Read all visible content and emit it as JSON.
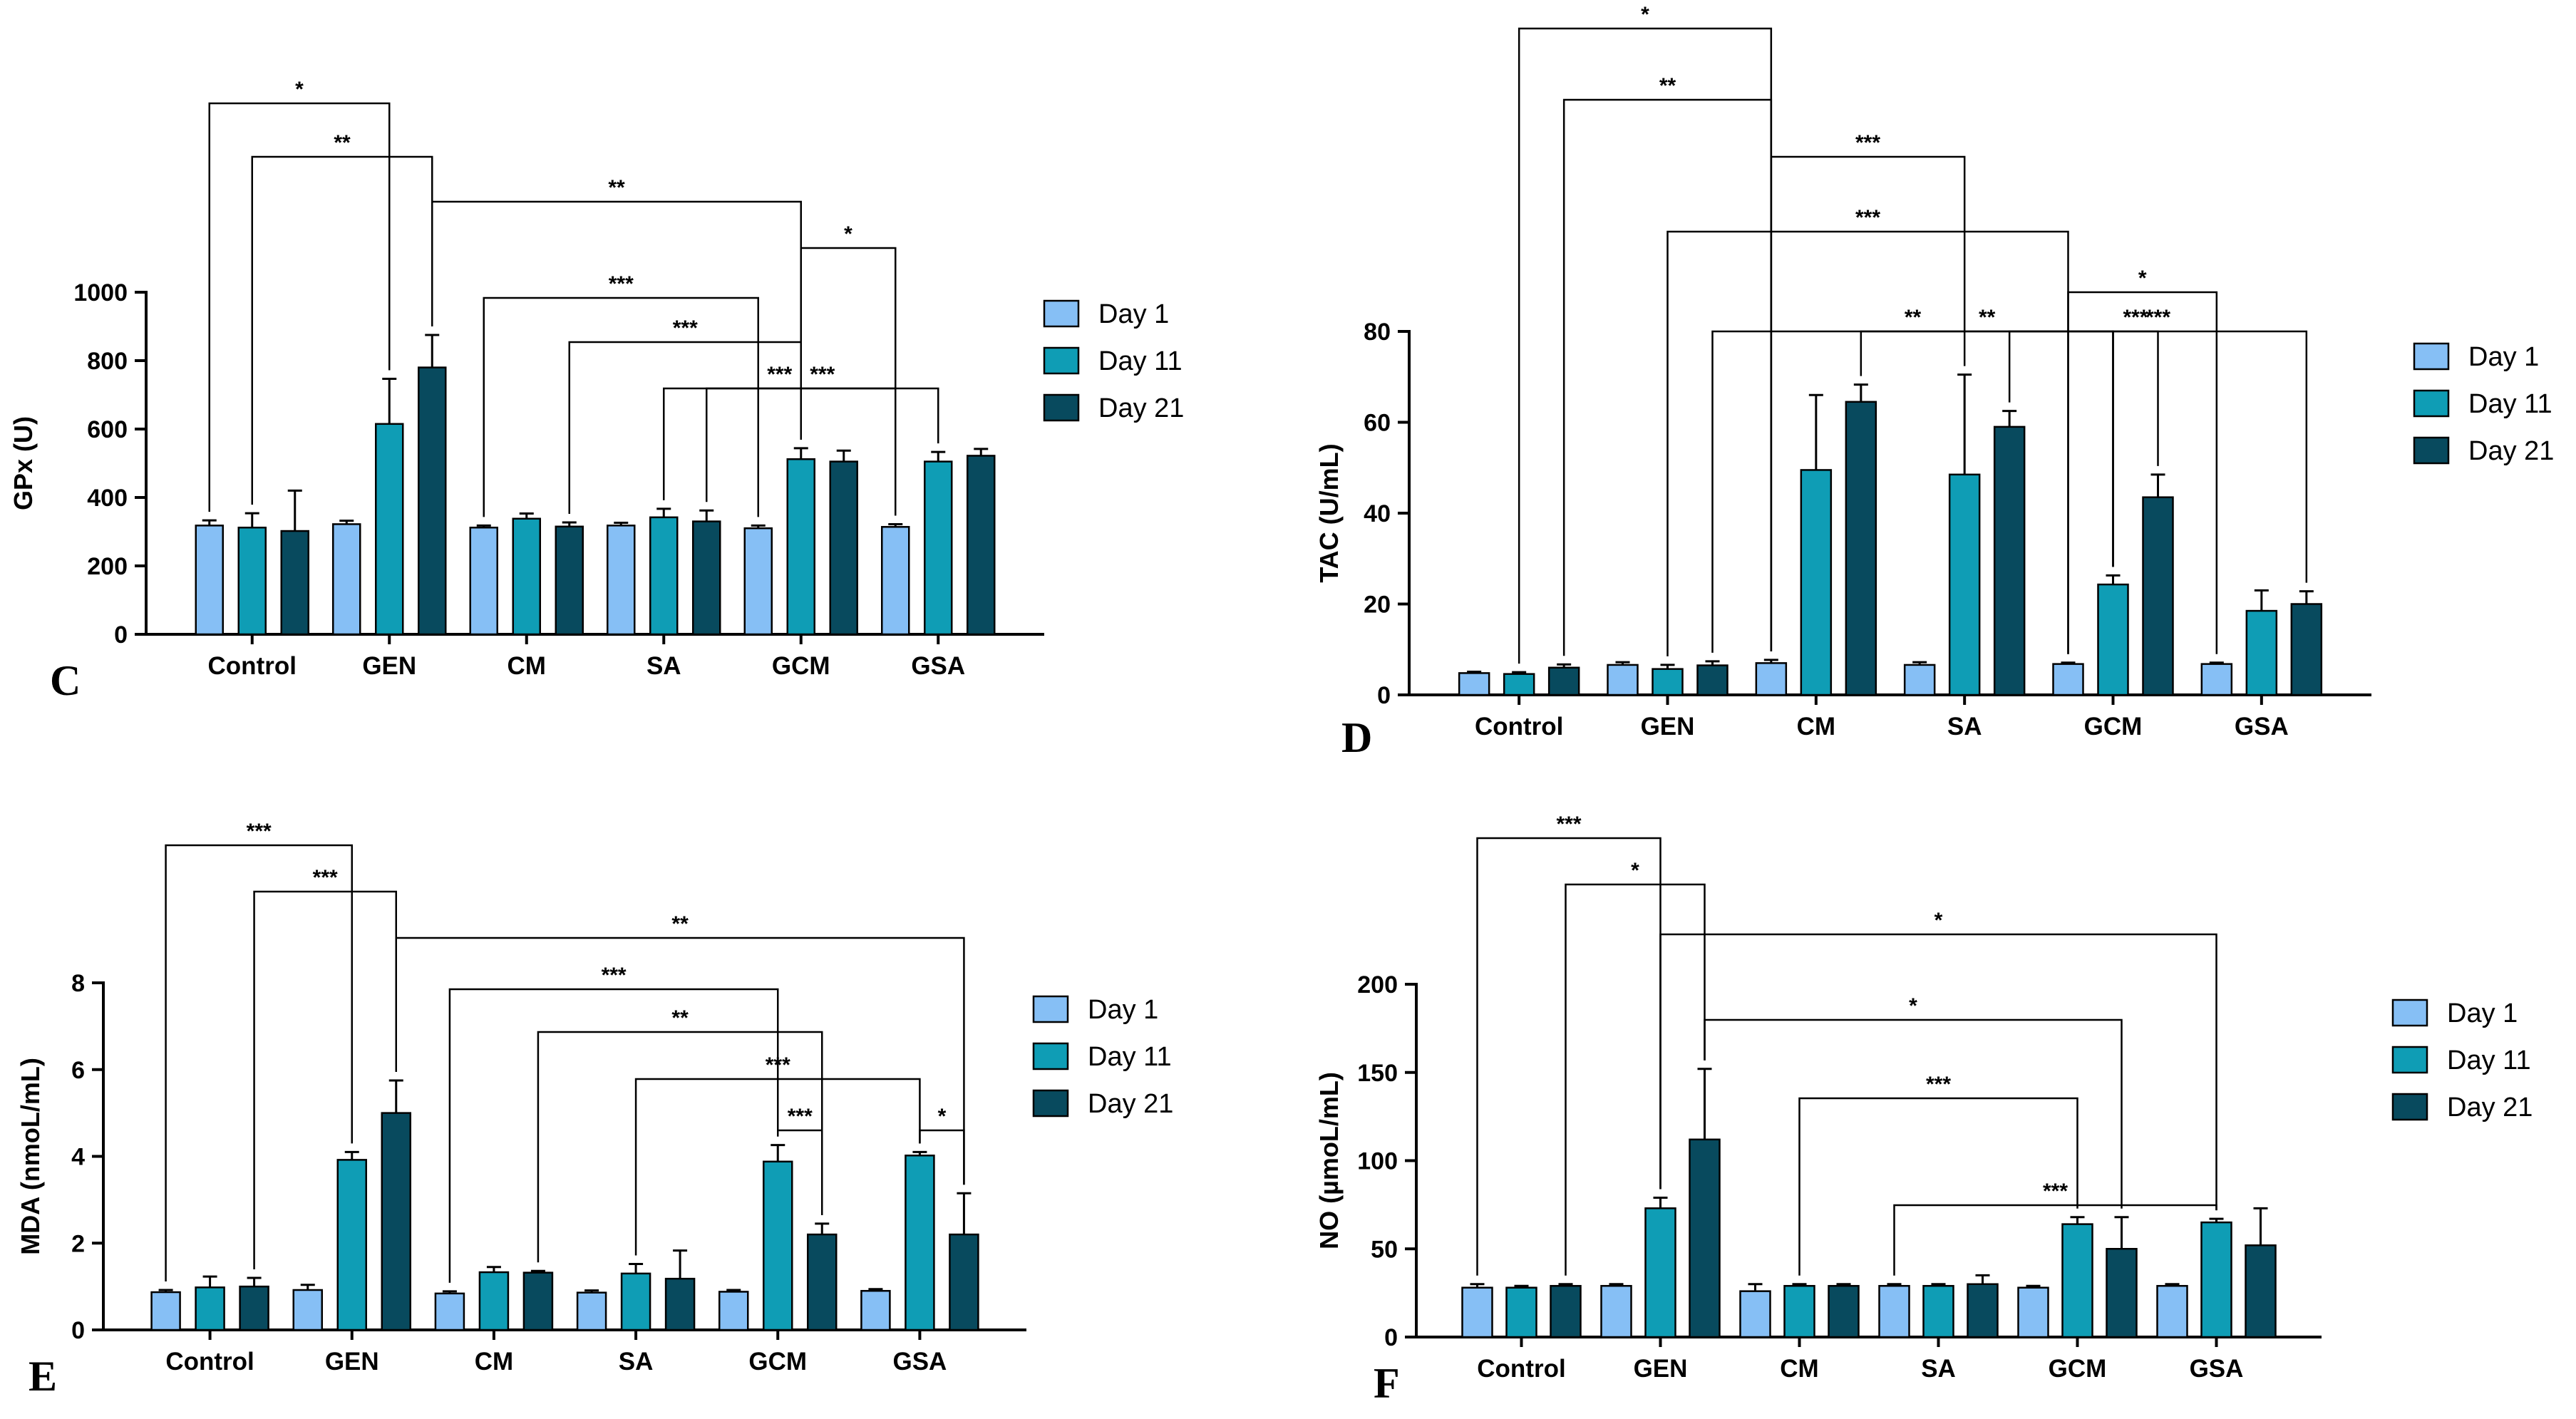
{
  "legend": [
    "Day 1",
    "Day 11",
    "Day 21"
  ],
  "colors": {
    "day1": "#86bff5",
    "day11": "#0f9db5",
    "day21": "#084a5e"
  },
  "chart_data": [
    {
      "panel": "C",
      "type": "bar",
      "ylabel": "GPx (U)",
      "ylim": [
        0,
        1000
      ],
      "yticks": [
        0,
        200,
        400,
        600,
        800,
        1000
      ],
      "categories": [
        "Control",
        "GEN",
        "CM",
        "SA",
        "GCM",
        "GSA"
      ],
      "series": [
        {
          "name": "Day 1",
          "values": [
            318,
            322,
            312,
            318,
            310,
            314
          ],
          "errors": [
            15,
            10,
            6,
            8,
            8,
            8
          ]
        },
        {
          "name": "Day 11",
          "values": [
            312,
            615,
            338,
            342,
            512,
            505
          ],
          "errors": [
            42,
            132,
            15,
            25,
            32,
            28
          ]
        },
        {
          "name": "Day 21",
          "values": [
            302,
            780,
            315,
            330,
            505,
            522
          ],
          "errors": [
            118,
            95,
            12,
            32,
            32,
            20
          ]
        }
      ],
      "significance": [
        {
          "text": "*",
          "x1": [
            0,
            0
          ],
          "x2": [
            1,
            1
          ]
        },
        {
          "text": "**",
          "x1": [
            0,
            1
          ],
          "x2": [
            1,
            2
          ]
        },
        {
          "text": "**",
          "x1": [
            1,
            2
          ],
          "x2": [
            4,
            1
          ],
          "joint": true
        },
        {
          "text": "*",
          "x1": [
            4,
            1
          ],
          "x2": [
            5,
            0
          ],
          "joint": true
        },
        {
          "text": "***",
          "x1": [
            2,
            0
          ],
          "x2": [
            4,
            0
          ]
        },
        {
          "text": "***",
          "x1": [
            2,
            2
          ],
          "x2": [
            4,
            1
          ]
        },
        {
          "text": "***",
          "x1": [
            3,
            1
          ],
          "x2": [
            5,
            0
          ]
        },
        {
          "text": "***",
          "x1": [
            3,
            2
          ],
          "x2": [
            5,
            1
          ]
        }
      ]
    },
    {
      "panel": "D",
      "type": "bar",
      "ylabel": "TAC (U/mL)",
      "ylim": [
        0,
        80
      ],
      "yticks": [
        0,
        20,
        40,
        60,
        80
      ],
      "categories": [
        "Control",
        "GEN",
        "CM",
        "SA",
        "GCM",
        "GSA"
      ],
      "series": [
        {
          "name": "Day 1",
          "values": [
            4.8,
            6.6,
            7.0,
            6.6,
            6.8,
            6.8
          ],
          "errors": [
            0.3,
            0.6,
            0.7,
            0.6,
            0.3,
            0.3
          ]
        },
        {
          "name": "Day 11",
          "values": [
            4.6,
            5.7,
            49.5,
            48.5,
            24.3,
            18.5
          ],
          "errors": [
            0.4,
            0.9,
            16.5,
            22,
            2.0,
            4.5
          ]
        },
        {
          "name": "Day 21",
          "values": [
            6.0,
            6.5,
            64.5,
            59.0,
            43.5,
            20.0
          ],
          "errors": [
            0.7,
            0.9,
            3.8,
            3.5,
            5.0,
            2.8
          ]
        }
      ],
      "significance": [
        {
          "text": "*",
          "x1": [
            0,
            1
          ],
          "x2": [
            2,
            0
          ]
        },
        {
          "text": "**",
          "x1": [
            0,
            2
          ],
          "x2": [
            2,
            0
          ],
          "joint": true
        },
        {
          "text": "***",
          "x1": [
            2,
            0
          ],
          "x2": [
            3,
            1
          ],
          "joint": true
        },
        {
          "text": "***",
          "x1": [
            1,
            1
          ],
          "x2": [
            4,
            0
          ],
          "joint": true
        },
        {
          "text": "*",
          "x1": [
            4,
            0
          ],
          "x2": [
            5,
            0
          ],
          "joint": true
        },
        {
          "text": "**",
          "x1": [
            1,
            2
          ],
          "x2": [
            4,
            1
          ],
          "joint": true
        },
        {
          "text": "**",
          "x1": [
            2,
            2
          ],
          "x2": [
            4,
            1
          ]
        },
        {
          "text": "***",
          "x1": [
            3,
            2
          ],
          "x2": [
            5,
            2
          ]
        },
        {
          "text": "***",
          "x1": [
            4,
            1
          ],
          "x2": [
            4,
            2
          ]
        }
      ]
    },
    {
      "panel": "E",
      "type": "bar",
      "ylabel": "MDA (nmoL/mL)",
      "ylim": [
        0,
        8
      ],
      "yticks": [
        0,
        2,
        4,
        6,
        8
      ],
      "categories": [
        "Control",
        "GEN",
        "CM",
        "SA",
        "GCM",
        "GSA"
      ],
      "series": [
        {
          "name": "Day 1",
          "values": [
            0.87,
            0.92,
            0.84,
            0.86,
            0.88,
            0.9
          ],
          "errors": [
            0.05,
            0.12,
            0.05,
            0.05,
            0.04,
            0.04
          ]
        },
        {
          "name": "Day 11",
          "values": [
            0.98,
            3.92,
            1.33,
            1.3,
            3.88,
            4.02
          ],
          "errors": [
            0.25,
            0.18,
            0.12,
            0.22,
            0.38,
            0.08
          ]
        },
        {
          "name": "Day 21",
          "values": [
            1.0,
            5.0,
            1.32,
            1.18,
            2.2,
            2.2
          ],
          "errors": [
            0.2,
            0.75,
            0.04,
            0.65,
            0.25,
            0.95
          ]
        }
      ],
      "significance": [
        {
          "text": "***",
          "x1": [
            0,
            0
          ],
          "x2": [
            1,
            1
          ]
        },
        {
          "text": "***",
          "x1": [
            0,
            2
          ],
          "x2": [
            1,
            2
          ]
        },
        {
          "text": "**",
          "x1": [
            1,
            2
          ],
          "x2": [
            5,
            2
          ],
          "joint": true
        },
        {
          "text": "***",
          "x1": [
            2,
            0
          ],
          "x2": [
            4,
            1
          ]
        },
        {
          "text": "**",
          "x1": [
            2,
            2
          ],
          "x2": [
            4,
            2
          ]
        },
        {
          "text": "***",
          "x1": [
            3,
            1
          ],
          "x2": [
            5,
            1
          ]
        },
        {
          "text": "***",
          "x1": [
            4,
            1
          ],
          "x2": [
            4,
            2
          ]
        },
        {
          "text": "*",
          "x1": [
            5,
            1
          ],
          "x2": [
            5,
            2
          ]
        }
      ]
    },
    {
      "panel": "F",
      "type": "bar",
      "ylabel": "NO (µmoL/mL)",
      "ylim": [
        0,
        200
      ],
      "yticks": [
        0,
        50,
        100,
        150,
        200
      ],
      "categories": [
        "Control",
        "GEN",
        "CM",
        "SA",
        "GCM",
        "GSA"
      ],
      "series": [
        {
          "name": "Day 1",
          "values": [
            28,
            29,
            26,
            29,
            28,
            29
          ],
          "errors": [
            2,
            1,
            4,
            1,
            1,
            1
          ]
        },
        {
          "name": "Day 11",
          "values": [
            28,
            73,
            29,
            29,
            64,
            65
          ],
          "errors": [
            1,
            6,
            1,
            1,
            4,
            2
          ]
        },
        {
          "name": "Day 21",
          "values": [
            29,
            112,
            29,
            30,
            50,
            52
          ],
          "errors": [
            1,
            40,
            1,
            5,
            18,
            21
          ]
        }
      ],
      "significance": [
        {
          "text": "***",
          "x1": [
            0,
            0
          ],
          "x2": [
            1,
            1
          ]
        },
        {
          "text": "*",
          "x1": [
            0,
            2
          ],
          "x2": [
            1,
            2
          ]
        },
        {
          "text": "*",
          "x1": [
            1,
            1
          ],
          "x2": [
            5,
            1
          ],
          "joint": true
        },
        {
          "text": "*",
          "x1": [
            1,
            2
          ],
          "x2": [
            4,
            2
          ]
        },
        {
          "text": "***",
          "x1": [
            2,
            1
          ],
          "x2": [
            4,
            1
          ]
        },
        {
          "text": "***",
          "x1": [
            3,
            0
          ],
          "x2": [
            5,
            1
          ]
        }
      ]
    }
  ]
}
